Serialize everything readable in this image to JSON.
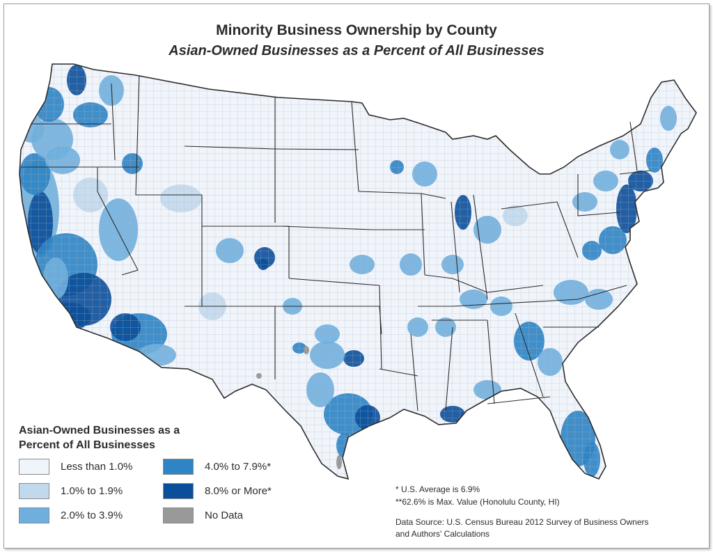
{
  "title": "Minority Business Ownership by County",
  "subtitle": "Asian-Owned Businesses as a Percent of All Businesses",
  "legend": {
    "title_line1": "Asian-Owned Businesses as a",
    "title_line2": "Percent of All Businesses",
    "items": [
      {
        "label": "Less than 1.0%",
        "color": "#f0f4fb"
      },
      {
        "label": "1.0% to 1.9%",
        "color": "#c2d9ec"
      },
      {
        "label": "2.0% to 3.9%",
        "color": "#6fafde"
      },
      {
        "label": "4.0% to 7.9%*",
        "color": "#2e84c4"
      },
      {
        "label": "8.0% or More*",
        "color": "#0b4f9a"
      },
      {
        "label": "No Data",
        "color": "#999999"
      }
    ]
  },
  "notes": {
    "average": "*  U.S. Average is 6.9%",
    "max": "**62.6% is Max. Value (Honolulu County, HI)",
    "source_line1": "Data Source: U.S. Census Bureau 2012 Survey of Business Owners",
    "source_line2": "and Authors' Calculations"
  },
  "colors": {
    "border": "#2b2b2b",
    "county_line": "#a9a9a9",
    "base": "#f0f4fb"
  }
}
